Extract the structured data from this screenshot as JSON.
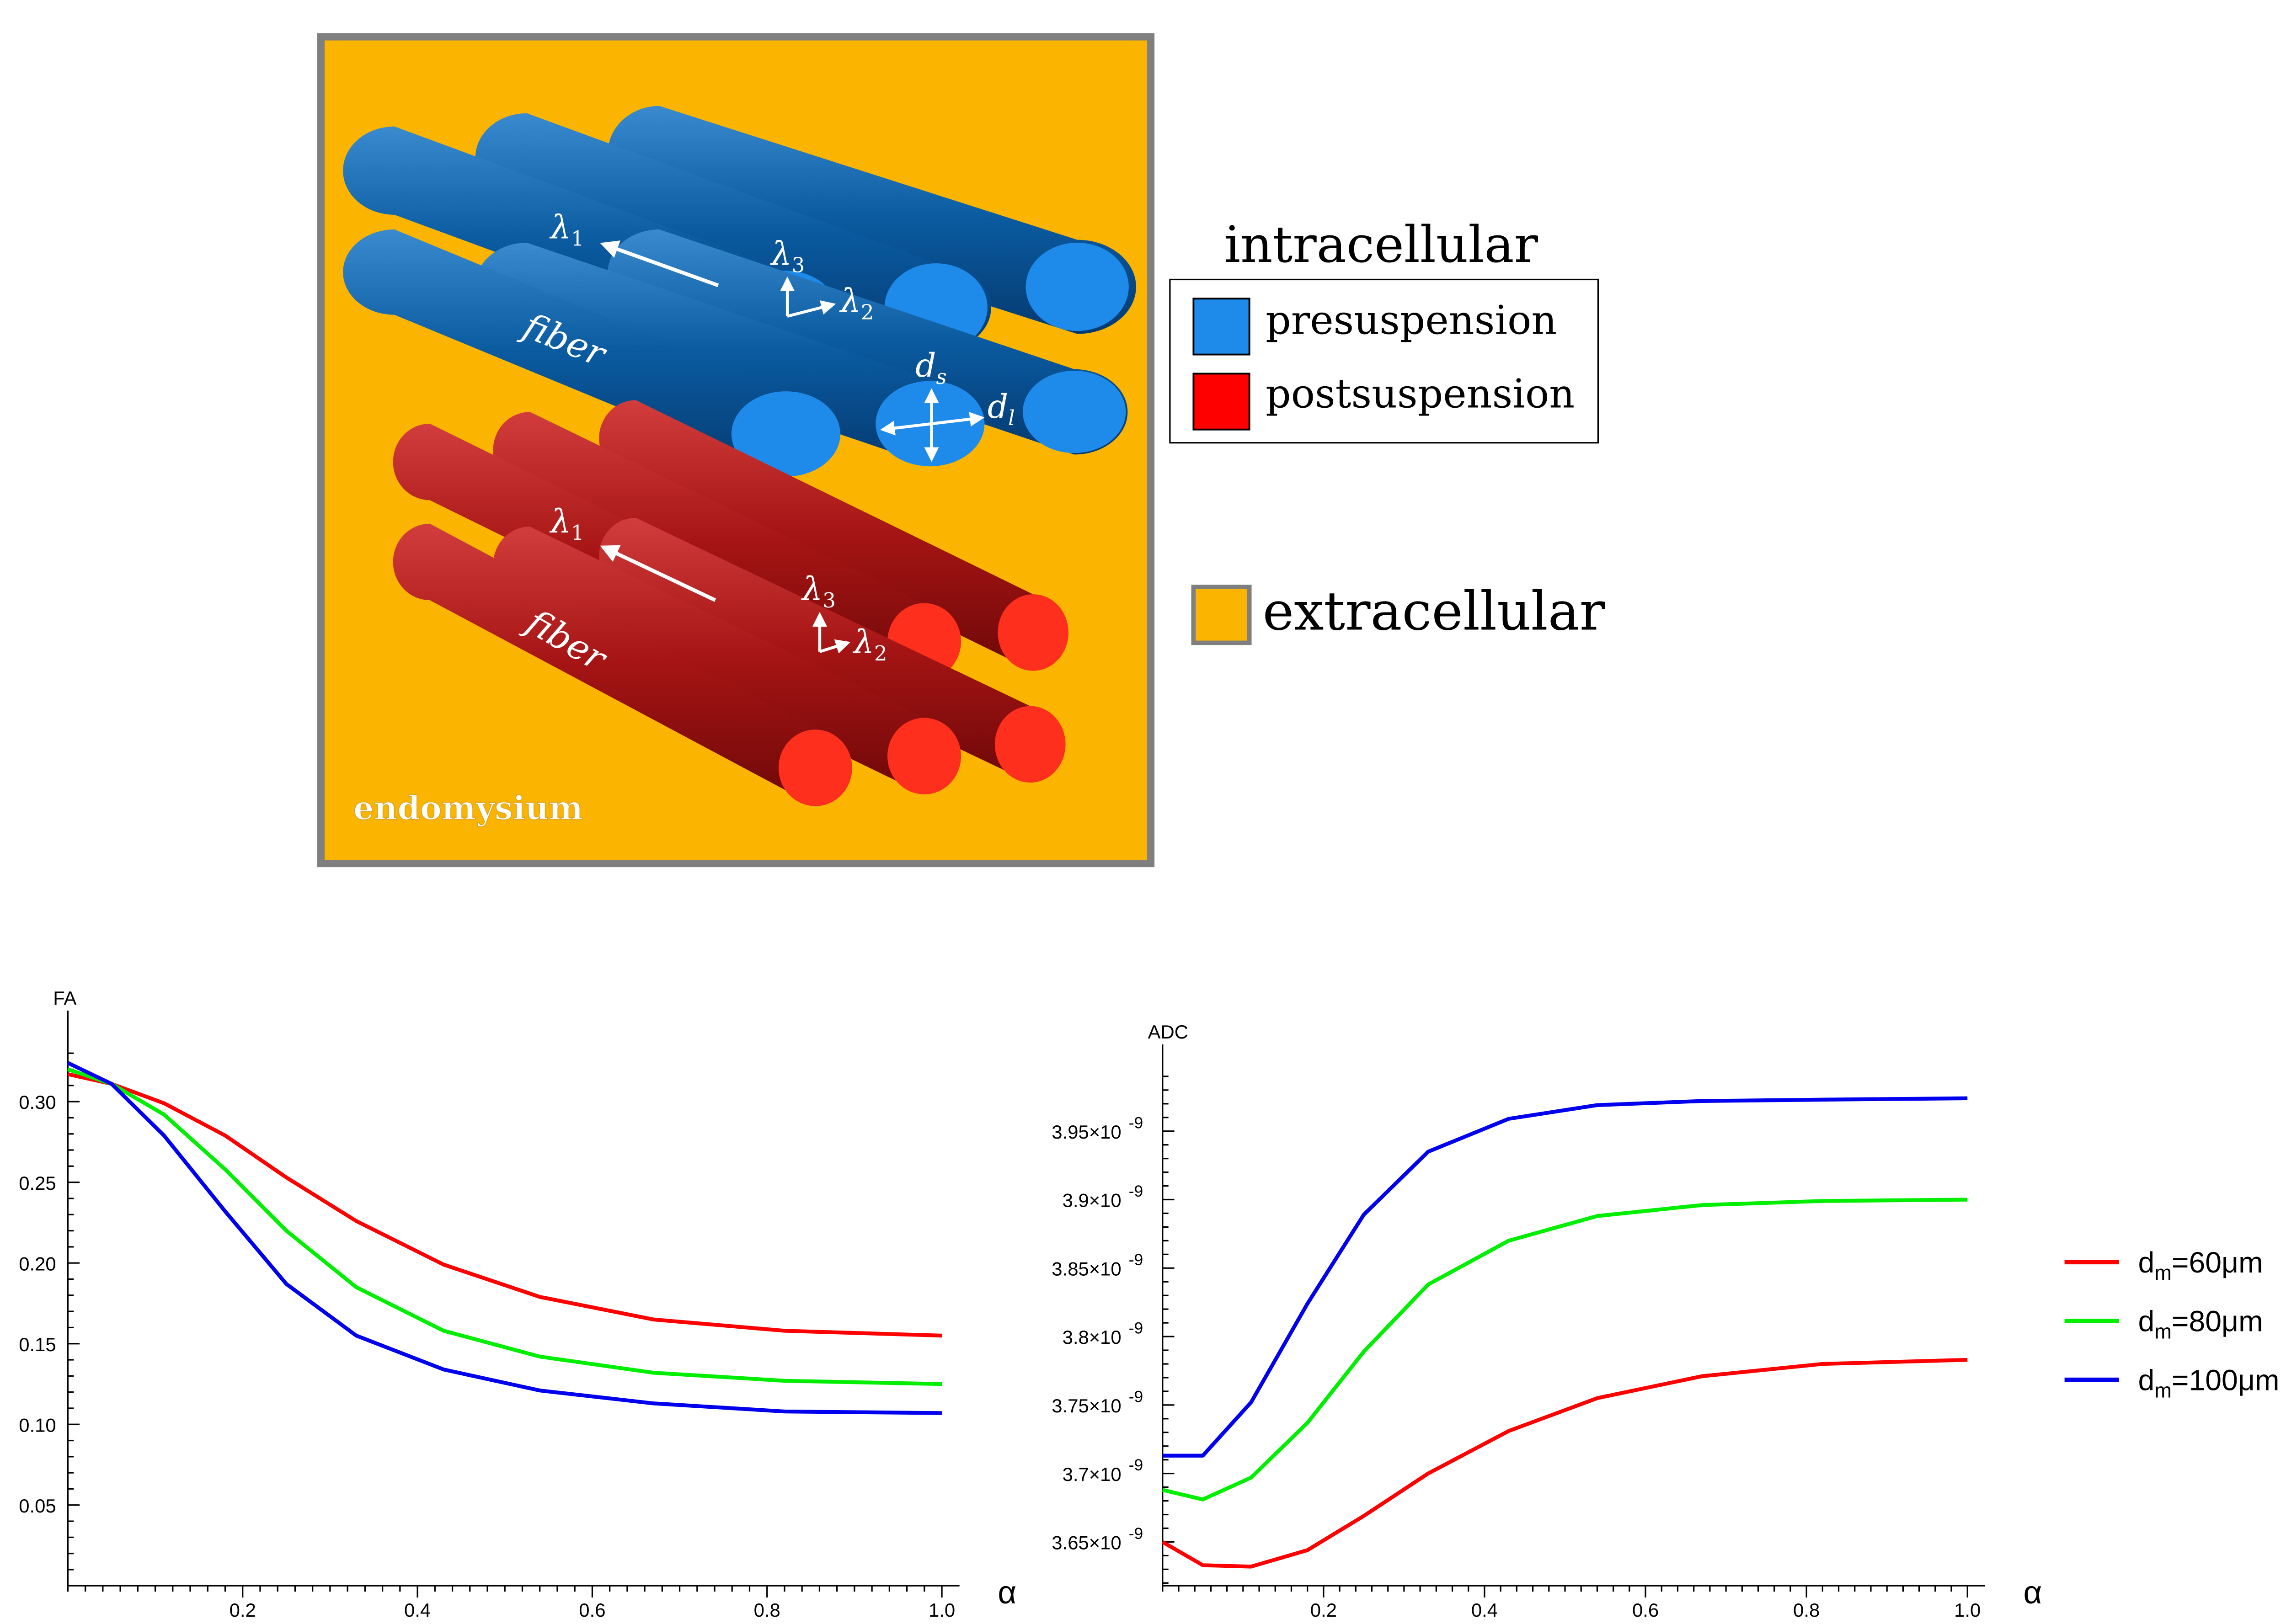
{
  "schematic": {
    "fiber_label_top": "fiber",
    "fiber_label_bottom": "fiber",
    "lambda1": "λ",
    "lambda2": "λ",
    "lambda3": "λ",
    "sub1": "1",
    "sub2": "2",
    "sub3": "3",
    "d_s": "d",
    "d_s_sub": "s",
    "d_l": "d",
    "d_l_sub": "l",
    "endomysium": "endomysium",
    "colors": {
      "extracellular": "#fbb400",
      "frame": "#7f7f7f",
      "pre_cylinder": "#0a5aa0",
      "pre_cap": "#1e8aea",
      "post_cylinder": "#a51414",
      "post_cap": "#ff2f1e"
    }
  },
  "legend_top": {
    "title": "intracellular",
    "items": [
      {
        "label": "presuspension",
        "color": "#1e8aea"
      },
      {
        "label": "postsuspension",
        "color": "#ff0000"
      }
    ],
    "extracellular": {
      "label": "extracellular",
      "color": "#fbb400"
    }
  },
  "chart_data": [
    {
      "type": "line",
      "ylabel": "FA",
      "xlabel": "α",
      "xlim": [
        0,
        1.0
      ],
      "ylim": [
        0,
        0.34
      ],
      "xticks": [
        "0.2",
        "0.4",
        "0.6",
        "0.8",
        "1.0"
      ],
      "yticks": [
        "0.05",
        "0.10",
        "0.15",
        "0.20",
        "0.25",
        "0.30"
      ],
      "x": [
        0,
        0.05,
        0.11,
        0.18,
        0.25,
        0.33,
        0.43,
        0.54,
        0.67,
        0.82,
        1.0
      ],
      "series": [
        {
          "name": "d_m=60μm",
          "color": "#ff0000",
          "values": [
            0.317,
            0.311,
            0.299,
            0.279,
            0.253,
            0.226,
            0.199,
            0.179,
            0.165,
            0.158,
            0.155
          ]
        },
        {
          "name": "d_m=80μm",
          "color": "#00ee00",
          "values": [
            0.32,
            0.311,
            0.292,
            0.258,
            0.22,
            0.185,
            0.158,
            0.142,
            0.132,
            0.127,
            0.125
          ]
        },
        {
          "name": "d_m=100μm",
          "color": "#0000ee",
          "values": [
            0.324,
            0.311,
            0.279,
            0.232,
            0.187,
            0.155,
            0.134,
            0.121,
            0.113,
            0.108,
            0.107
          ]
        }
      ]
    },
    {
      "type": "line",
      "ylabel": "ADC",
      "xlabel": "α",
      "xlim": [
        0,
        1.0
      ],
      "ylim": [
        3.618,
        3.994
      ],
      "xticks": [
        "0.2",
        "0.4",
        "0.6",
        "0.8",
        "1.0"
      ],
      "yticks": [
        "3.65×10",
        "3.7×10",
        "3.75×10",
        "3.8×10",
        "3.85×10",
        "3.9×10",
        "3.95×10"
      ],
      "ytick_exp": "-9",
      "x": [
        0,
        0.05,
        0.11,
        0.18,
        0.25,
        0.33,
        0.43,
        0.54,
        0.67,
        0.82,
        1.0
      ],
      "series": [
        {
          "name": "d_m=60μm",
          "color": "#ff0000",
          "values": [
            3.65,
            3.633,
            3.632,
            3.644,
            3.669,
            3.7,
            3.731,
            3.755,
            3.771,
            3.78,
            3.783
          ]
        },
        {
          "name": "d_m=80μm",
          "color": "#00ee00",
          "values": [
            3.688,
            3.681,
            3.697,
            3.737,
            3.789,
            3.838,
            3.87,
            3.888,
            3.896,
            3.899,
            3.9
          ]
        },
        {
          "name": "d_m=100μm",
          "color": "#0000ee",
          "values": [
            3.713,
            3.713,
            3.752,
            3.824,
            3.889,
            3.935,
            3.959,
            3.969,
            3.972,
            3.973,
            3.974
          ]
        }
      ]
    }
  ],
  "chart_legend": [
    {
      "prefix": "d",
      "sub": "m",
      "suffix": "=60μm",
      "color": "#ff0000"
    },
    {
      "prefix": "d",
      "sub": "m",
      "suffix": "=80μm",
      "color": "#00ee00"
    },
    {
      "prefix": "d",
      "sub": "m",
      "suffix": "=100μm",
      "color": "#0000ee"
    }
  ]
}
